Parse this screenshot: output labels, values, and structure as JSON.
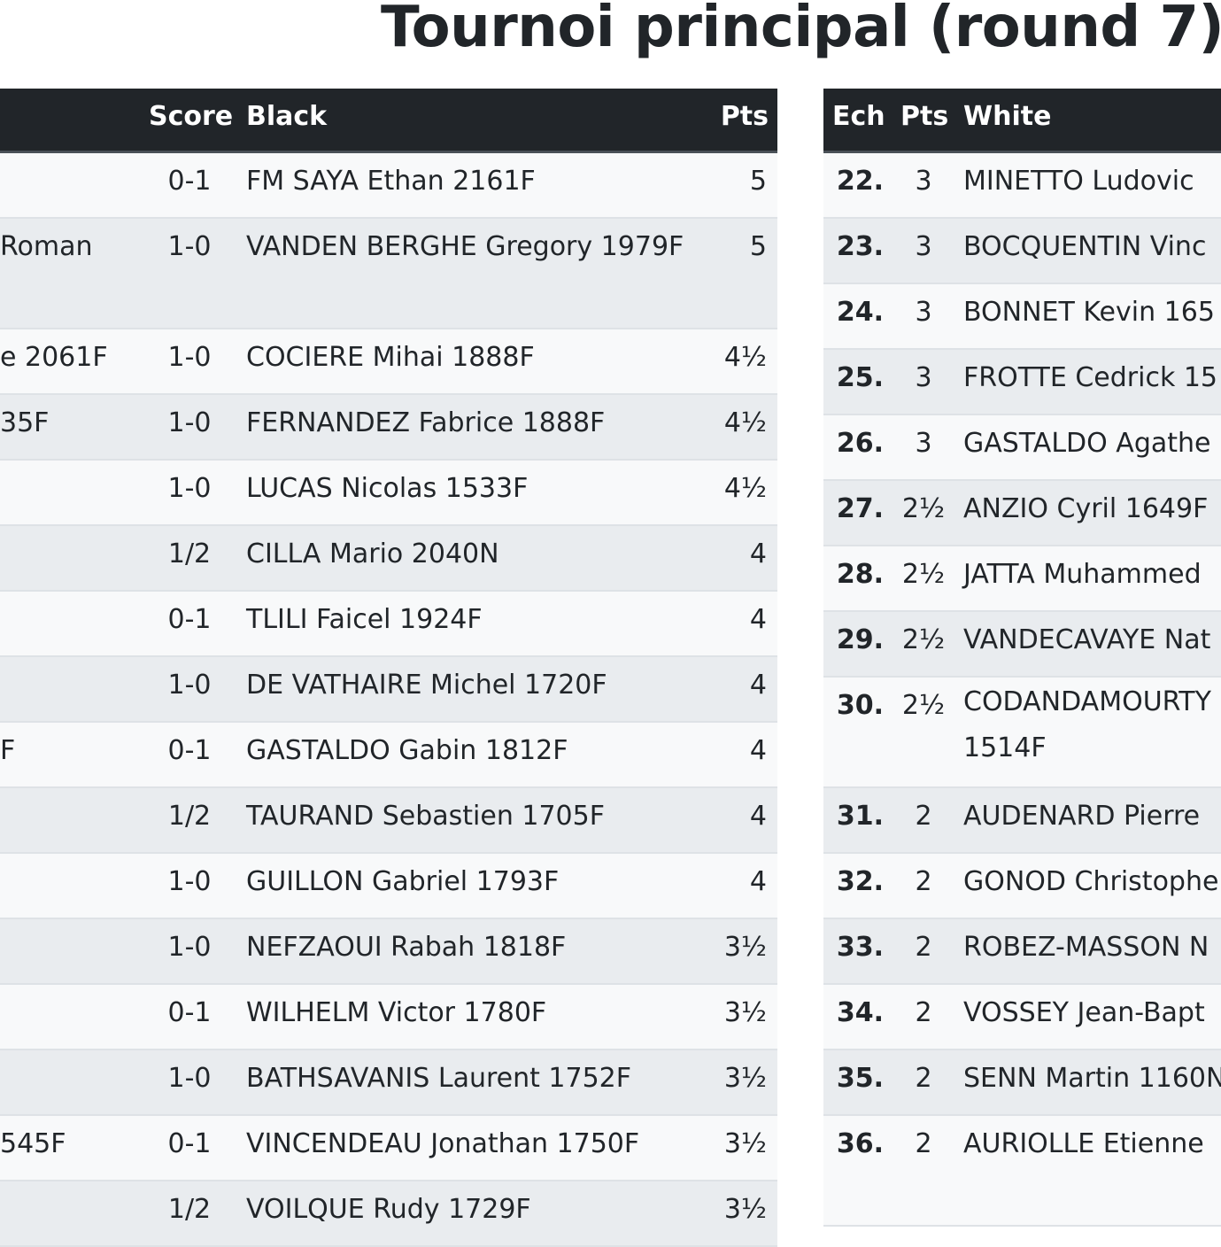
{
  "title": "Tournoi principal (round 7)",
  "left_table": {
    "headers": {
      "score": "Score",
      "black": "Black",
      "pts": "Pts"
    },
    "rows": [
      {
        "white": "",
        "score": "0-1",
        "black": "FM SAYA Ethan 2161F",
        "pts": "5",
        "tall": false
      },
      {
        "white": "Roman",
        "score": "1-0",
        "black": "VANDEN BERGHE Gregory 1979F",
        "pts": "5",
        "tall": true
      },
      {
        "white": "e 2061F",
        "score": "1-0",
        "black": "COCIERE Mihai 1888F",
        "pts": "4½",
        "tall": false
      },
      {
        "white": "35F",
        "score": "1-0",
        "black": "FERNANDEZ Fabrice 1888F",
        "pts": "4½",
        "tall": false
      },
      {
        "white": "",
        "score": "1-0",
        "black": "LUCAS Nicolas 1533F",
        "pts": "4½",
        "tall": false
      },
      {
        "white": "",
        "score": "1/2",
        "black": "CILLA Mario 2040N",
        "pts": "4",
        "tall": false
      },
      {
        "white": "",
        "score": "0-1",
        "black": "TLILI Faicel 1924F",
        "pts": "4",
        "tall": false
      },
      {
        "white": "",
        "score": "1-0",
        "black": "DE VATHAIRE Michel 1720F",
        "pts": "4",
        "tall": false
      },
      {
        "white": "F",
        "score": "0-1",
        "black": "GASTALDO Gabin 1812F",
        "pts": "4",
        "tall": false
      },
      {
        "white": "",
        "score": "1/2",
        "black": "TAURAND Sebastien 1705F",
        "pts": "4",
        "tall": false
      },
      {
        "white": "",
        "score": "1-0",
        "black": "GUILLON Gabriel 1793F",
        "pts": "4",
        "tall": false
      },
      {
        "white": "",
        "score": "1-0",
        "black": "NEFZAOUI Rabah 1818F",
        "pts": "3½",
        "tall": false
      },
      {
        "white": "",
        "score": "0-1",
        "black": "WILHELM Victor 1780F",
        "pts": "3½",
        "tall": false
      },
      {
        "white": "",
        "score": "1-0",
        "black": "BATHSAVANIS Laurent 1752F",
        "pts": "3½",
        "tall": false
      },
      {
        "white": "545F",
        "score": "0-1",
        "black": "VINCENDEAU Jonathan 1750F",
        "pts": "3½",
        "tall": false
      },
      {
        "white": "",
        "score": "1/2",
        "black": "VOILQUE Rudy 1729F",
        "pts": "3½",
        "tall": false
      }
    ]
  },
  "right_table": {
    "headers": {
      "ech": "Ech",
      "pts": "Pts",
      "white": "White"
    },
    "rows": [
      {
        "ech": "22.",
        "pts": "3",
        "white": "MINETTO Ludovic",
        "tall": false
      },
      {
        "ech": "23.",
        "pts": "3",
        "white": "BOCQUENTIN Vinc",
        "tall": false
      },
      {
        "ech": "24.",
        "pts": "3",
        "white": "BONNET Kevin 165",
        "tall": false
      },
      {
        "ech": "25.",
        "pts": "3",
        "white": "FROTTE Cedrick 15",
        "tall": false
      },
      {
        "ech": "26.",
        "pts": "3",
        "white": "GASTALDO Agathe",
        "tall": false
      },
      {
        "ech": "27.",
        "pts": "2½",
        "white": "ANZIO Cyril 1649F",
        "tall": false
      },
      {
        "ech": "28.",
        "pts": "2½",
        "white": "JATTA Muhammed",
        "tall": false
      },
      {
        "ech": "29.",
        "pts": "2½",
        "white": "VANDECAVAYE Nat",
        "tall": false
      },
      {
        "ech": "30.",
        "pts": "2½",
        "white": "CODANDAMOURTY 1514F",
        "tall": true
      },
      {
        "ech": "31.",
        "pts": "2",
        "white": "AUDENARD Pierre",
        "tall": false
      },
      {
        "ech": "32.",
        "pts": "2",
        "white": "GONOD Christophe",
        "tall": false
      },
      {
        "ech": "33.",
        "pts": "2",
        "white": "ROBEZ-MASSON N",
        "tall": false
      },
      {
        "ech": "34.",
        "pts": "2",
        "white": "VOSSEY Jean-Bapt",
        "tall": false
      },
      {
        "ech": "35.",
        "pts": "2",
        "white": "SENN Martin 1160N",
        "tall": false
      },
      {
        "ech": "36.",
        "pts": "2",
        "white": "AURIOLLE Etienne",
        "tall": true
      }
    ]
  }
}
